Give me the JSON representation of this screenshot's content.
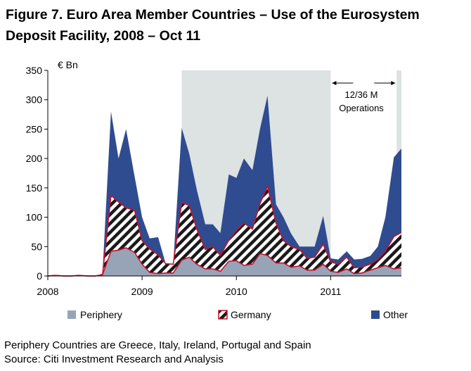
{
  "figure": {
    "title": "Figure 7. Euro Area Member Countries – Use of the Eurosystem Deposit Facility, 2008 – Oct 11",
    "notes": [
      "Periphery Countries are Greece, Italy, Ireland, Portugal and Spain",
      "Source: Citi Investment Research and Analysis"
    ]
  },
  "colors": {
    "periphery": "#97a4b8",
    "periphery_stroke": "#c8102e",
    "germany_hatch": "#1a1a1a",
    "germany_outline": "#c8102e",
    "other": "#2e4c8f",
    "shading": "#dde2e2",
    "axis": "#000000"
  },
  "chart_data": {
    "type": "area",
    "stacked": true,
    "ylabel": "€ Bn",
    "ylim": [
      0,
      350
    ],
    "yticks": [
      0,
      50,
      100,
      150,
      200,
      250,
      300,
      350
    ],
    "xlim": [
      2008.0,
      2011.75
    ],
    "xticks": [
      2008,
      2009,
      2010,
      2011
    ],
    "xtick_labels": [
      "2008",
      "2009",
      "2010",
      "2011"
    ],
    "legend": [
      "Periphery",
      "Germany",
      "Other"
    ],
    "legend_position": "bottom",
    "annotation": {
      "text_line1": "12/36 M",
      "text_line2": "Operations",
      "x_range": [
        2011.0,
        2011.7
      ]
    },
    "shaded_periods": [
      [
        2009.42,
        2011.0
      ],
      [
        2011.7,
        2011.75
      ]
    ],
    "x": [
      2008.0,
      2008.08,
      2008.17,
      2008.25,
      2008.33,
      2008.42,
      2008.5,
      2008.58,
      2008.67,
      2008.75,
      2008.83,
      2008.92,
      2009.0,
      2009.08,
      2009.17,
      2009.25,
      2009.33,
      2009.42,
      2009.5,
      2009.58,
      2009.67,
      2009.75,
      2009.83,
      2009.92,
      2010.0,
      2010.08,
      2010.17,
      2010.25,
      2010.33,
      2010.42,
      2010.5,
      2010.58,
      2010.67,
      2010.75,
      2010.83,
      2010.92,
      2011.0,
      2011.08,
      2011.17,
      2011.25,
      2011.33,
      2011.42,
      2011.5,
      2011.58,
      2011.67,
      2011.75
    ],
    "series": [
      {
        "name": "Periphery",
        "values": [
          0,
          1,
          0,
          0,
          1,
          0,
          0,
          2,
          42,
          44,
          48,
          40,
          20,
          6,
          4,
          5,
          5,
          27,
          32,
          20,
          12,
          12,
          8,
          25,
          26,
          18,
          20,
          38,
          35,
          22,
          22,
          15,
          17,
          10,
          10,
          20,
          8,
          6,
          12,
          4,
          5,
          10,
          14,
          18,
          12,
          14
        ]
      },
      {
        "name": "Germany",
        "values": [
          0,
          0,
          0,
          0,
          0,
          0,
          0,
          0,
          95,
          82,
          68,
          72,
          40,
          40,
          32,
          16,
          15,
          98,
          88,
          60,
          33,
          38,
          27,
          36,
          51,
          72,
          60,
          85,
          118,
          68,
          38,
          35,
          28,
          20,
          22,
          34,
          16,
          14,
          20,
          10,
          10,
          10,
          14,
          24,
          55,
          60
        ]
      },
      {
        "name": "Other",
        "values": [
          0,
          0,
          0,
          0,
          0,
          0,
          0,
          2,
          143,
          74,
          134,
          58,
          40,
          18,
          30,
          0,
          0,
          127,
          88,
          67,
          43,
          38,
          38,
          112,
          90,
          110,
          100,
          127,
          154,
          32,
          40,
          22,
          5,
          20,
          18,
          48,
          6,
          8,
          10,
          14,
          14,
          14,
          22,
          58,
          135,
          143
        ]
      }
    ]
  }
}
